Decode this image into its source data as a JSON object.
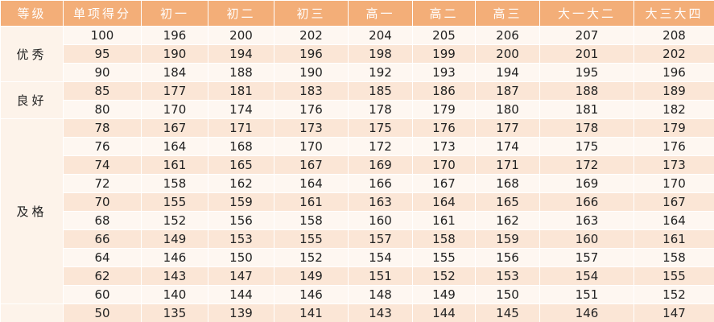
{
  "table": {
    "header": [
      "等级",
      "单项得分",
      "初一",
      "初二",
      "初三",
      "高一",
      "高二",
      "高三",
      "大一大二",
      "大三大四"
    ],
    "groups": [
      {
        "label": "优秀",
        "rows": [
          [
            100,
            196,
            200,
            202,
            204,
            205,
            206,
            207,
            208
          ],
          [
            95,
            190,
            194,
            196,
            198,
            199,
            200,
            201,
            202
          ],
          [
            90,
            184,
            188,
            190,
            192,
            193,
            194,
            195,
            196
          ]
        ]
      },
      {
        "label": "良好",
        "rows": [
          [
            85,
            177,
            181,
            183,
            185,
            186,
            187,
            188,
            189
          ],
          [
            80,
            170,
            174,
            176,
            178,
            179,
            180,
            181,
            182
          ]
        ]
      },
      {
        "label": "及格",
        "rows": [
          [
            78,
            167,
            171,
            173,
            175,
            176,
            177,
            178,
            179
          ],
          [
            76,
            164,
            168,
            170,
            172,
            173,
            174,
            175,
            176
          ],
          [
            74,
            161,
            165,
            167,
            169,
            170,
            171,
            172,
            173
          ],
          [
            72,
            158,
            162,
            164,
            166,
            167,
            168,
            169,
            170
          ],
          [
            70,
            155,
            159,
            161,
            163,
            164,
            165,
            166,
            167
          ],
          [
            68,
            152,
            156,
            158,
            160,
            161,
            162,
            163,
            164
          ],
          [
            66,
            149,
            153,
            155,
            157,
            158,
            159,
            160,
            161
          ],
          [
            64,
            146,
            150,
            152,
            154,
            155,
            156,
            157,
            158
          ],
          [
            62,
            143,
            147,
            149,
            151,
            152,
            153,
            154,
            155
          ],
          [
            60,
            140,
            144,
            146,
            148,
            149,
            150,
            151,
            152
          ]
        ]
      },
      {
        "rows": [
          [
            50,
            135,
            139,
            141,
            143,
            144,
            145,
            146,
            147
          ]
        ]
      }
    ]
  }
}
